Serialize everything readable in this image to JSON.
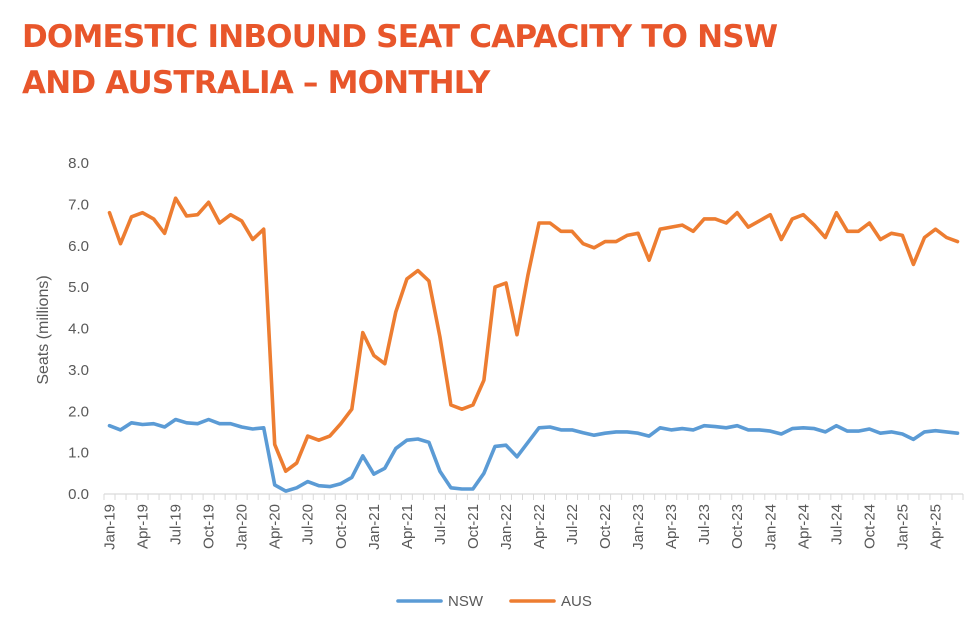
{
  "title_lines": [
    "DOMESTIC INBOUND SEAT CAPACITY TO NSW",
    "AND AUSTRALIA – MONTHLY"
  ],
  "colors": {
    "title": "#e8562b",
    "nsw": "#5b9bd5",
    "aus": "#ed7d31",
    "axis": "#d9d9d9",
    "text": "#595959"
  },
  "chart_data": {
    "type": "line",
    "title": "DOMESTIC INBOUND SEAT CAPACITY TO NSW AND AUSTRALIA – MONTHLY",
    "xlabel": "",
    "ylabel": "Seats (millions)",
    "ylim": [
      0,
      8
    ],
    "yticks": [
      "0.0",
      "1.0",
      "2.0",
      "3.0",
      "4.0",
      "5.0",
      "6.0",
      "7.0",
      "8.0"
    ],
    "grid": false,
    "legend": "bottom",
    "x_tick_labels": [
      "Jan-19",
      "Apr-19",
      "Jul-19",
      "Oct-19",
      "Jan-20",
      "Apr-20",
      "Jul-20",
      "Oct-20",
      "Jan-21",
      "Apr-21",
      "Jul-21",
      "Oct-21",
      "Jan-22",
      "Apr-22",
      "Jul-22",
      "Oct-22",
      "Jan-23",
      "Apr-23",
      "Jul-23",
      "Oct-23",
      "Jan-24",
      "Apr-24",
      "Jul-24",
      "Oct-24",
      "Jan-25",
      "Apr-25"
    ],
    "x": [
      "Jan-19",
      "Feb-19",
      "Mar-19",
      "Apr-19",
      "May-19",
      "Jun-19",
      "Jul-19",
      "Aug-19",
      "Sep-19",
      "Oct-19",
      "Nov-19",
      "Dec-19",
      "Jan-20",
      "Feb-20",
      "Mar-20",
      "Apr-20",
      "May-20",
      "Jun-20",
      "Jul-20",
      "Aug-20",
      "Sep-20",
      "Oct-20",
      "Nov-20",
      "Dec-20",
      "Jan-21",
      "Feb-21",
      "Mar-21",
      "Apr-21",
      "May-21",
      "Jun-21",
      "Jul-21",
      "Aug-21",
      "Sep-21",
      "Oct-21",
      "Nov-21",
      "Dec-21",
      "Jan-22",
      "Feb-22",
      "Mar-22",
      "Apr-22",
      "May-22",
      "Jun-22",
      "Jul-22",
      "Aug-22",
      "Sep-22",
      "Oct-22",
      "Nov-22",
      "Dec-22",
      "Jan-23",
      "Feb-23",
      "Mar-23",
      "Apr-23",
      "May-23",
      "Jun-23",
      "Jul-23",
      "Aug-23",
      "Sep-23",
      "Oct-23",
      "Nov-23",
      "Dec-23",
      "Jan-24",
      "Feb-24",
      "Mar-24",
      "Apr-24",
      "May-24",
      "Jun-24",
      "Jul-24",
      "Aug-24",
      "Sep-24",
      "Oct-24",
      "Nov-24",
      "Dec-24",
      "Jan-25",
      "Feb-25",
      "Mar-25",
      "Apr-25",
      "May-25",
      "Jun-25"
    ],
    "series": [
      {
        "name": "NSW",
        "values": [
          1.65,
          1.55,
          1.72,
          1.68,
          1.7,
          1.62,
          1.8,
          1.72,
          1.7,
          1.8,
          1.7,
          1.7,
          1.62,
          1.57,
          1.6,
          0.22,
          0.07,
          0.15,
          0.3,
          0.2,
          0.18,
          0.25,
          0.4,
          0.92,
          0.48,
          0.62,
          1.1,
          1.3,
          1.33,
          1.25,
          0.55,
          0.15,
          0.12,
          0.12,
          0.5,
          1.15,
          1.18,
          0.9,
          1.25,
          1.6,
          1.62,
          1.55,
          1.55,
          1.48,
          1.42,
          1.47,
          1.5,
          1.5,
          1.47,
          1.4,
          1.6,
          1.55,
          1.58,
          1.55,
          1.65,
          1.63,
          1.6,
          1.65,
          1.55,
          1.55,
          1.52,
          1.45,
          1.58,
          1.6,
          1.58,
          1.5,
          1.65,
          1.52,
          1.52,
          1.57,
          1.47,
          1.5,
          1.45,
          1.32,
          1.5,
          1.53,
          1.5,
          1.47
        ]
      },
      {
        "name": "AUS",
        "values": [
          6.8,
          6.05,
          6.7,
          6.8,
          6.65,
          6.3,
          7.15,
          6.72,
          6.75,
          7.05,
          6.55,
          6.75,
          6.6,
          6.15,
          6.4,
          1.2,
          0.55,
          0.75,
          1.4,
          1.3,
          1.4,
          1.7,
          2.05,
          3.9,
          3.35,
          3.15,
          4.4,
          5.2,
          5.4,
          5.15,
          3.8,
          2.15,
          2.05,
          2.15,
          2.75,
          5.0,
          5.1,
          3.85,
          5.3,
          6.55,
          6.55,
          6.35,
          6.35,
          6.05,
          5.95,
          6.1,
          6.1,
          6.25,
          6.3,
          5.65,
          6.4,
          6.45,
          6.5,
          6.35,
          6.65,
          6.65,
          6.55,
          6.8,
          6.45,
          6.6,
          6.75,
          6.15,
          6.65,
          6.75,
          6.5,
          6.2,
          6.8,
          6.35,
          6.35,
          6.55,
          6.15,
          6.3,
          6.25,
          5.55,
          6.2,
          6.4,
          6.2,
          6.1
        ]
      }
    ]
  }
}
